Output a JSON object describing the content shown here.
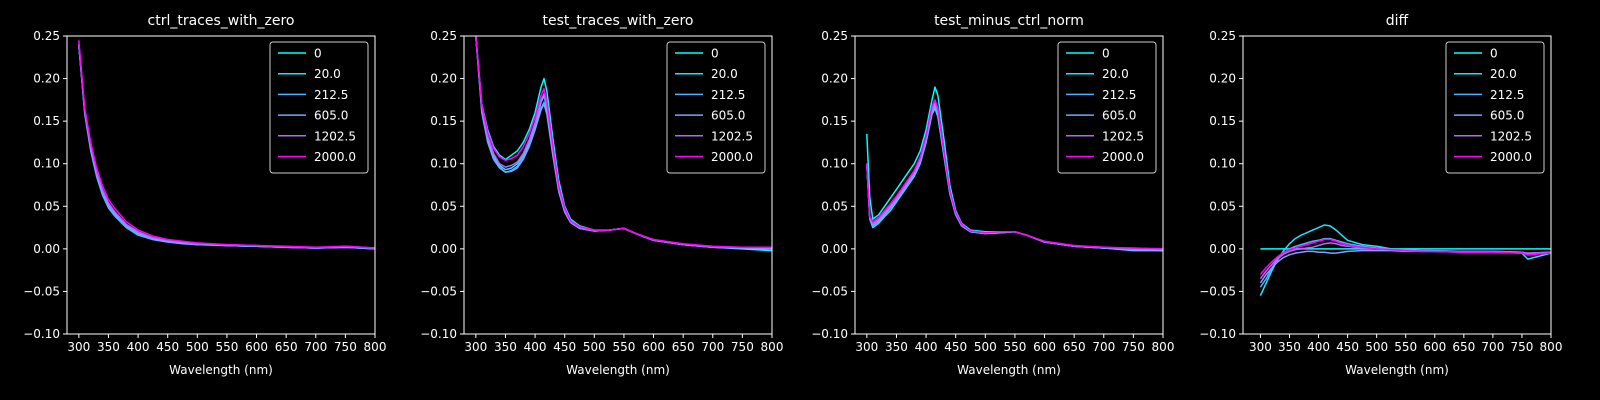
{
  "figure": {
    "background": "#000000",
    "text_color": "#ffffff",
    "series_colors": [
      "#00ffff",
      "#1ae5ff",
      "#4db2ff",
      "#80a0ff",
      "#b366ff",
      "#ff00ff"
    ]
  },
  "chart_data": [
    {
      "type": "line",
      "title": "ctrl_traces_with_zero",
      "xlabel": "Wavelength (nm)",
      "ylabel": "",
      "xlim": [
        280,
        800
      ],
      "ylim": [
        -0.1,
        0.25
      ],
      "xticks": [
        "300",
        "350",
        "400",
        "450",
        "500",
        "550",
        "600",
        "650",
        "700",
        "750",
        "800"
      ],
      "yticks": [
        "−0.10",
        "−0.05",
        "0.00",
        "0.05",
        "0.10",
        "0.15",
        "0.20",
        "0.25"
      ],
      "legend": "top-right",
      "grid": false,
      "x": [
        300,
        310,
        320,
        330,
        340,
        350,
        360,
        380,
        400,
        425,
        450,
        475,
        500,
        550,
        600,
        650,
        700,
        750,
        800
      ],
      "series": [
        {
          "name": "0",
          "values": [
            0.24,
            0.16,
            0.12,
            0.09,
            0.068,
            0.052,
            0.042,
            0.028,
            0.018,
            0.012,
            0.009,
            0.007,
            0.006,
            0.004,
            0.003,
            0.002,
            0.001,
            0.002,
            0.001
          ]
        },
        {
          "name": "20.0",
          "values": [
            0.24,
            0.16,
            0.118,
            0.088,
            0.065,
            0.05,
            0.04,
            0.026,
            0.017,
            0.011,
            0.008,
            0.007,
            0.005,
            0.004,
            0.003,
            0.002,
            0.001,
            0.002,
            0.0
          ]
        },
        {
          "name": "212.5",
          "values": [
            0.24,
            0.158,
            0.115,
            0.085,
            0.063,
            0.048,
            0.039,
            0.025,
            0.016,
            0.011,
            0.008,
            0.006,
            0.005,
            0.004,
            0.003,
            0.002,
            0.001,
            0.002,
            0.0
          ]
        },
        {
          "name": "605.0",
          "values": [
            0.24,
            0.16,
            0.118,
            0.087,
            0.066,
            0.051,
            0.041,
            0.027,
            0.018,
            0.012,
            0.009,
            0.007,
            0.006,
            0.004,
            0.003,
            0.002,
            0.001,
            0.002,
            0.001
          ]
        },
        {
          "name": "1202.5",
          "values": [
            0.24,
            0.162,
            0.12,
            0.09,
            0.069,
            0.054,
            0.044,
            0.029,
            0.02,
            0.013,
            0.01,
            0.008,
            0.006,
            0.005,
            0.004,
            0.002,
            0.001,
            0.003,
            0.001
          ]
        },
        {
          "name": "2000.0",
          "values": [
            0.245,
            0.165,
            0.125,
            0.095,
            0.074,
            0.058,
            0.048,
            0.032,
            0.022,
            0.015,
            0.011,
            0.009,
            0.007,
            0.005,
            0.004,
            0.003,
            0.002,
            0.003,
            0.001
          ]
        }
      ]
    },
    {
      "type": "line",
      "title": "test_traces_with_zero",
      "xlabel": "Wavelength (nm)",
      "ylabel": "",
      "xlim": [
        280,
        800
      ],
      "ylim": [
        -0.1,
        0.25
      ],
      "xticks": [
        "300",
        "350",
        "400",
        "450",
        "500",
        "550",
        "600",
        "650",
        "700",
        "750",
        "800"
      ],
      "yticks": [
        "−0.10",
        "−0.05",
        "0.00",
        "0.05",
        "0.10",
        "0.15",
        "0.20",
        "0.25"
      ],
      "legend": "top-right",
      "grid": false,
      "x": [
        300,
        310,
        320,
        330,
        340,
        350,
        360,
        370,
        380,
        390,
        400,
        410,
        415,
        420,
        430,
        440,
        450,
        460,
        475,
        500,
        525,
        550,
        570,
        600,
        650,
        700,
        750,
        800
      ],
      "series": [
        {
          "name": "0",
          "values": [
            0.25,
            0.17,
            0.14,
            0.12,
            0.11,
            0.105,
            0.11,
            0.115,
            0.125,
            0.14,
            0.16,
            0.19,
            0.2,
            0.185,
            0.13,
            0.08,
            0.05,
            0.035,
            0.027,
            0.022,
            0.022,
            0.024,
            0.018,
            0.01,
            0.005,
            0.002,
            0.0,
            -0.002
          ]
        },
        {
          "name": "20.0",
          "values": [
            0.25,
            0.165,
            0.13,
            0.11,
            0.098,
            0.093,
            0.095,
            0.1,
            0.11,
            0.125,
            0.145,
            0.172,
            0.18,
            0.165,
            0.115,
            0.07,
            0.045,
            0.032,
            0.025,
            0.021,
            0.022,
            0.024,
            0.018,
            0.01,
            0.005,
            0.002,
            0.001,
            0.0
          ]
        },
        {
          "name": "212.5",
          "values": [
            0.25,
            0.16,
            0.125,
            0.105,
            0.095,
            0.09,
            0.092,
            0.097,
            0.107,
            0.122,
            0.142,
            0.165,
            0.172,
            0.16,
            0.112,
            0.068,
            0.044,
            0.031,
            0.024,
            0.021,
            0.022,
            0.024,
            0.018,
            0.01,
            0.005,
            0.002,
            0.001,
            0.0
          ]
        },
        {
          "name": "605.0",
          "values": [
            0.25,
            0.162,
            0.127,
            0.107,
            0.096,
            0.09,
            0.091,
            0.095,
            0.105,
            0.12,
            0.14,
            0.163,
            0.17,
            0.158,
            0.11,
            0.067,
            0.043,
            0.031,
            0.024,
            0.021,
            0.022,
            0.024,
            0.018,
            0.01,
            0.005,
            0.002,
            0.001,
            0.0
          ]
        },
        {
          "name": "1202.5",
          "values": [
            0.25,
            0.165,
            0.132,
            0.112,
            0.1,
            0.096,
            0.098,
            0.102,
            0.112,
            0.128,
            0.148,
            0.175,
            0.182,
            0.168,
            0.118,
            0.071,
            0.046,
            0.032,
            0.025,
            0.021,
            0.022,
            0.024,
            0.018,
            0.01,
            0.005,
            0.002,
            0.002,
            0.001
          ]
        },
        {
          "name": "2000.0",
          "values": [
            0.25,
            0.17,
            0.137,
            0.118,
            0.108,
            0.104,
            0.106,
            0.11,
            0.12,
            0.135,
            0.155,
            0.18,
            0.188,
            0.173,
            0.122,
            0.074,
            0.048,
            0.033,
            0.026,
            0.022,
            0.022,
            0.024,
            0.018,
            0.011,
            0.006,
            0.003,
            0.002,
            0.002
          ]
        }
      ]
    },
    {
      "type": "line",
      "title": "test_minus_ctrl_norm",
      "xlabel": "Wavelength (nm)",
      "ylabel": "",
      "xlim": [
        280,
        800
      ],
      "ylim": [
        -0.1,
        0.25
      ],
      "xticks": [
        "300",
        "350",
        "400",
        "450",
        "500",
        "550",
        "600",
        "650",
        "700",
        "750",
        "800"
      ],
      "yticks": [
        "−0.10",
        "−0.05",
        "0.00",
        "0.05",
        "0.10",
        "0.15",
        "0.20",
        "0.25"
      ],
      "legend": "top-right",
      "grid": false,
      "x": [
        300,
        305,
        310,
        320,
        330,
        340,
        350,
        360,
        370,
        380,
        390,
        400,
        410,
        415,
        420,
        430,
        440,
        450,
        460,
        475,
        500,
        525,
        550,
        570,
        600,
        650,
        700,
        750,
        800
      ],
      "series": [
        {
          "name": "0",
          "values": [
            0.135,
            0.06,
            0.035,
            0.04,
            0.05,
            0.06,
            0.07,
            0.08,
            0.09,
            0.1,
            0.115,
            0.14,
            0.175,
            0.19,
            0.18,
            0.13,
            0.075,
            0.045,
            0.03,
            0.022,
            0.02,
            0.02,
            0.02,
            0.016,
            0.008,
            0.003,
            0.001,
            -0.001,
            -0.002
          ]
        },
        {
          "name": "20.0",
          "values": [
            0.1,
            0.035,
            0.025,
            0.03,
            0.038,
            0.045,
            0.055,
            0.065,
            0.075,
            0.085,
            0.1,
            0.125,
            0.158,
            0.165,
            0.155,
            0.11,
            0.065,
            0.04,
            0.027,
            0.02,
            0.018,
            0.019,
            0.02,
            0.016,
            0.008,
            0.003,
            0.001,
            -0.002,
            -0.002
          ]
        },
        {
          "name": "212.5",
          "values": [
            0.1,
            0.035,
            0.027,
            0.032,
            0.04,
            0.048,
            0.057,
            0.067,
            0.077,
            0.087,
            0.102,
            0.127,
            0.16,
            0.168,
            0.158,
            0.112,
            0.066,
            0.04,
            0.027,
            0.02,
            0.018,
            0.019,
            0.02,
            0.016,
            0.008,
            0.003,
            0.001,
            -0.001,
            -0.001
          ]
        },
        {
          "name": "605.0",
          "values": [
            0.1,
            0.036,
            0.028,
            0.033,
            0.041,
            0.049,
            0.058,
            0.068,
            0.078,
            0.088,
            0.103,
            0.128,
            0.162,
            0.17,
            0.16,
            0.113,
            0.067,
            0.041,
            0.028,
            0.02,
            0.018,
            0.019,
            0.02,
            0.016,
            0.008,
            0.003,
            0.001,
            -0.001,
            -0.001
          ]
        },
        {
          "name": "1202.5",
          "values": [
            0.1,
            0.037,
            0.03,
            0.035,
            0.043,
            0.051,
            0.06,
            0.07,
            0.08,
            0.09,
            0.105,
            0.13,
            0.165,
            0.172,
            0.162,
            0.115,
            0.068,
            0.042,
            0.028,
            0.021,
            0.019,
            0.02,
            0.02,
            0.016,
            0.008,
            0.003,
            0.002,
            0.0,
            0.0
          ]
        },
        {
          "name": "2000.0",
          "values": [
            0.1,
            0.038,
            0.032,
            0.037,
            0.045,
            0.053,
            0.062,
            0.072,
            0.082,
            0.092,
            0.108,
            0.133,
            0.168,
            0.175,
            0.165,
            0.117,
            0.069,
            0.043,
            0.029,
            0.021,
            0.019,
            0.02,
            0.02,
            0.016,
            0.009,
            0.004,
            0.002,
            0.001,
            0.0
          ]
        }
      ]
    },
    {
      "type": "line",
      "title": "diff",
      "xlabel": "Wavelength (nm)",
      "ylabel": "",
      "xlim": [
        270,
        800
      ],
      "ylim": [
        -0.1,
        0.25
      ],
      "xticks": [
        "300",
        "350",
        "400",
        "450",
        "500",
        "550",
        "600",
        "650",
        "700",
        "750",
        "800"
      ],
      "yticks": [
        "−0.10",
        "−0.05",
        "0.00",
        "0.05",
        "0.10",
        "0.15",
        "0.20",
        "0.25"
      ],
      "legend": "top-right",
      "grid": false,
      "x": [
        300,
        310,
        320,
        330,
        340,
        350,
        360,
        370,
        380,
        390,
        400,
        410,
        420,
        430,
        440,
        450,
        475,
        500,
        525,
        550,
        575,
        600,
        650,
        700,
        750,
        760,
        800
      ],
      "series": [
        {
          "name": "0",
          "values": [
            0,
            0,
            0,
            0,
            0,
            0,
            0,
            0,
            0,
            0,
            0,
            0,
            0,
            0,
            0,
            0,
            0,
            0,
            0,
            0,
            0,
            0,
            0,
            0,
            0,
            0,
            0
          ]
        },
        {
          "name": "20.0",
          "values": [
            -0.055,
            -0.04,
            -0.025,
            -0.012,
            -0.002,
            0.006,
            0.012,
            0.016,
            0.019,
            0.022,
            0.025,
            0.028,
            0.027,
            0.022,
            0.016,
            0.01,
            0.005,
            0.003,
            0.0,
            -0.002,
            -0.003,
            -0.003,
            -0.004,
            -0.004,
            -0.005,
            -0.012,
            -0.005
          ]
        },
        {
          "name": "212.5",
          "values": [
            -0.045,
            -0.035,
            -0.022,
            -0.012,
            -0.005,
            0.0,
            0.003,
            0.005,
            0.007,
            0.009,
            0.01,
            0.012,
            0.012,
            0.01,
            0.008,
            0.006,
            0.003,
            0.001,
            0.0,
            -0.001,
            -0.002,
            -0.002,
            -0.003,
            -0.003,
            -0.004,
            -0.006,
            -0.004
          ]
        },
        {
          "name": "605.0",
          "values": [
            -0.04,
            -0.03,
            -0.022,
            -0.015,
            -0.01,
            -0.007,
            -0.005,
            -0.004,
            -0.003,
            -0.003,
            -0.004,
            -0.004,
            -0.005,
            -0.005,
            -0.004,
            -0.003,
            -0.002,
            -0.002,
            -0.002,
            -0.003,
            -0.003,
            -0.003,
            -0.003,
            -0.003,
            -0.004,
            -0.005,
            -0.004
          ]
        },
        {
          "name": "1202.5",
          "values": [
            -0.035,
            -0.026,
            -0.018,
            -0.011,
            -0.006,
            -0.003,
            -0.001,
            0.0,
            0.001,
            0.002,
            0.004,
            0.006,
            0.007,
            0.006,
            0.004,
            0.003,
            0.001,
            0.0,
            -0.001,
            -0.002,
            -0.002,
            -0.003,
            -0.003,
            -0.003,
            -0.004,
            -0.005,
            -0.004
          ]
        },
        {
          "name": "2000.0",
          "values": [
            -0.03,
            -0.022,
            -0.015,
            -0.009,
            -0.004,
            -0.001,
            0.001,
            0.003,
            0.005,
            0.007,
            0.009,
            0.011,
            0.011,
            0.009,
            0.006,
            0.004,
            0.002,
            0.0,
            -0.001,
            -0.002,
            -0.003,
            -0.003,
            -0.004,
            -0.004,
            -0.005,
            -0.007,
            -0.005
          ]
        }
      ]
    }
  ]
}
